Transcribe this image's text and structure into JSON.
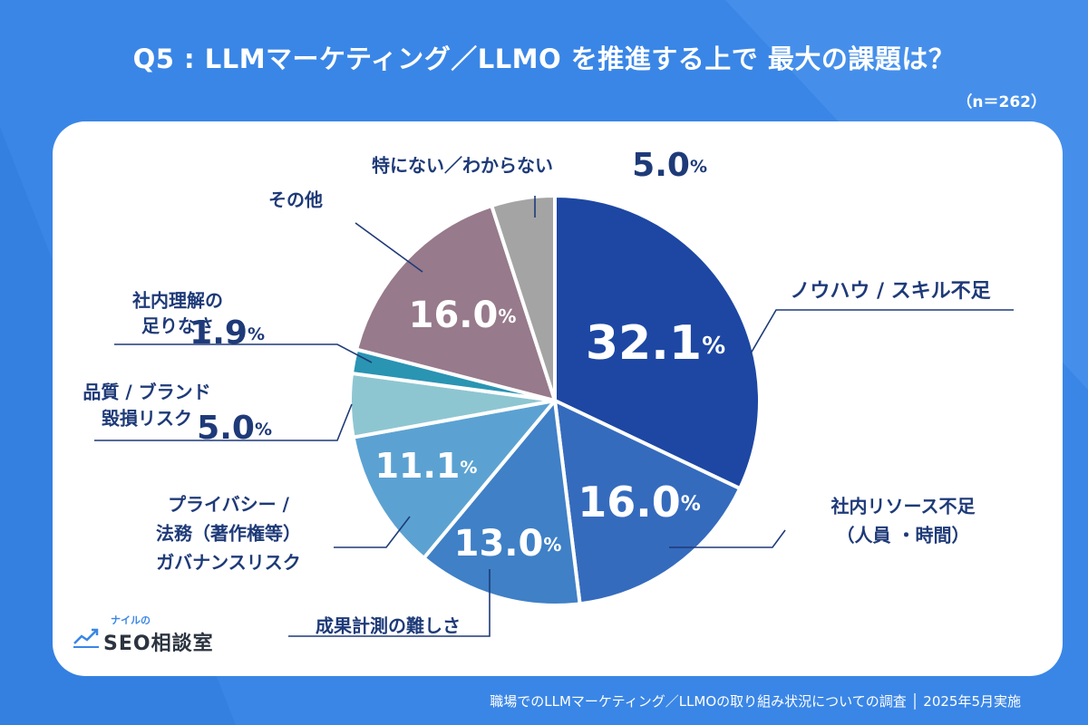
{
  "header": {
    "title": "Q5 : LLMマーケティング／LLMO を推進する上で 最大の課題は？",
    "n_label": "（n＝262）"
  },
  "footer": {
    "source": "職場でのLLMマーケティング／LLMOの取り組み状況についての調査 │ 2025年5月実施"
  },
  "logo": {
    "small_text": "ナイルの",
    "seo_text": "SEO",
    "main_text": "相談室"
  },
  "colors": {
    "background": "#3a86e6",
    "label_text": "#1e3a78",
    "leader_line": "#1e3a78"
  },
  "chart_data": {
    "type": "pie",
    "title": "Q5 : LLMマーケティング／LLMO を推進する上で 最大の課題は？",
    "unit": "%",
    "slices": [
      {
        "label_lines": [
          "ノウハウ / スキル不足"
        ],
        "value": 32.1,
        "value_text": "32.1",
        "color": "#1d47a3"
      },
      {
        "label_lines": [
          "社内リソース不足",
          "（人員 ・時間）"
        ],
        "value": 16.0,
        "value_text": "16.0",
        "color": "#356bbd"
      },
      {
        "label_lines": [
          "成果計測の難しさ"
        ],
        "value": 13.0,
        "value_text": "13.0",
        "color": "#3f80c6"
      },
      {
        "label_lines": [
          "プライバシー /",
          "法務（著作権等）",
          "ガバナンスリスク"
        ],
        "value": 11.1,
        "value_text": "11.1",
        "color": "#5ba2d2"
      },
      {
        "label_lines": [
          "品質 / ブランド",
          "毀損リスク"
        ],
        "value": 5.0,
        "value_text": "5.0",
        "color": "#8dc6d1"
      },
      {
        "label_lines": [
          "社内理解の",
          "足りなさ"
        ],
        "value": 1.9,
        "value_text": "1.9",
        "color": "#2a94b3"
      },
      {
        "label_lines": [
          "その他"
        ],
        "value": 16.0,
        "value_text": "16.0",
        "color": "#977a8b"
      },
      {
        "label_lines": [
          "特にない／わからない"
        ],
        "value": 5.0,
        "value_text": "5.0",
        "color": "#a4a4a4"
      }
    ]
  }
}
